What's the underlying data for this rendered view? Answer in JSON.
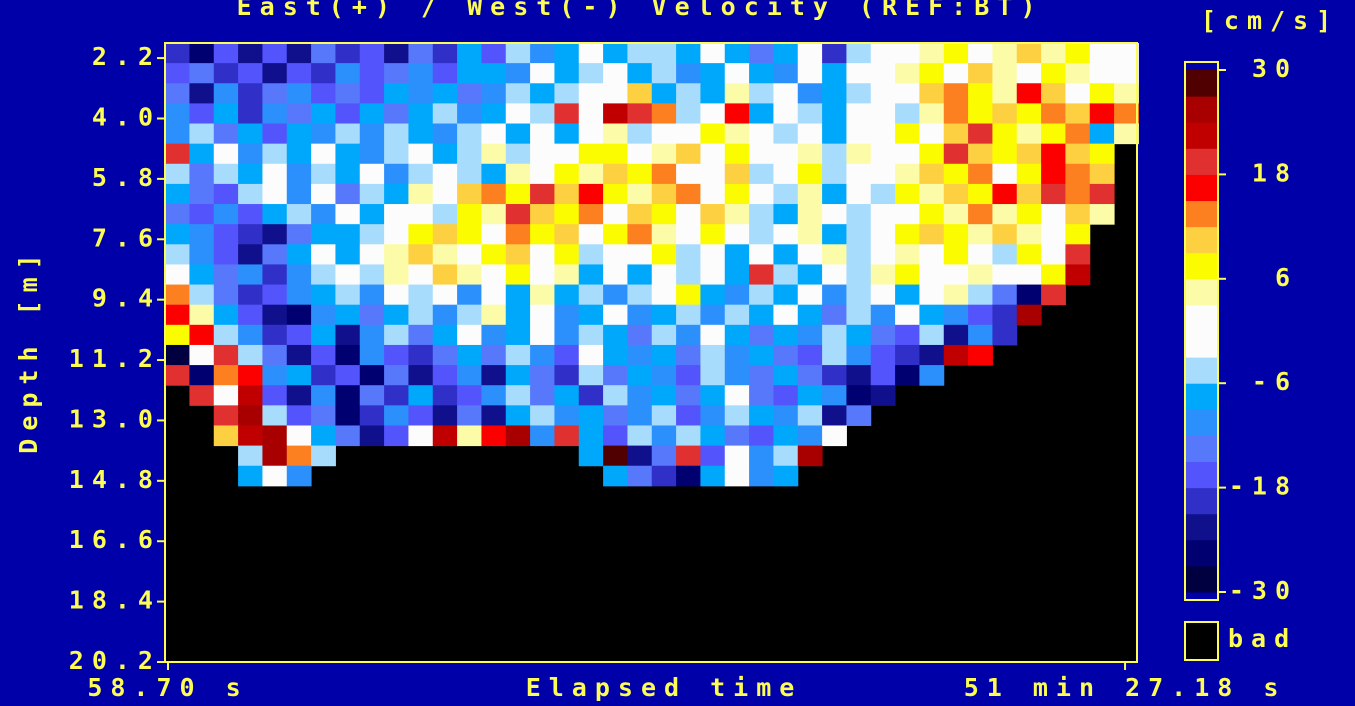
{
  "chart_data": {
    "type": "heatmap",
    "title": "East(+) / West(-) Velocity (REF:BT)",
    "xlabel": "Elapsed time",
    "ylabel": "Depth [m]",
    "colorbar_label": "[cm/s]",
    "bad_label": "bad",
    "bad_color": "#000000",
    "xlim": [
      49.2,
      3125
    ],
    "xticks": [
      {
        "value": 58.7,
        "label": "58.70 s"
      },
      {
        "value": 3087.18,
        "label": "51 min 27.18 s"
      }
    ],
    "ylim": [
      20.2,
      1.75
    ],
    "yticks": [
      2.2,
      {
        "value": 4,
        "label": "4.0"
      },
      5.8,
      7.6,
      9.4,
      11.2,
      {
        "value": 13,
        "label": "13.0"
      },
      14.8,
      16.6,
      18.4,
      20.2
    ],
    "clim": [
      -30,
      30
    ],
    "cticks": [
      30,
      18,
      6,
      -6,
      -18,
      -30
    ],
    "colors": [
      "#000040",
      "#000070",
      "#10108c",
      "#3030c8",
      "#5454fc",
      "#5878fc",
      "#2c90fc",
      "#00a8fc",
      "#a8dcfc",
      "#fcfcfc",
      "#fcfcfc",
      "#fcfca8",
      "#fcfc00",
      "#fcd040",
      "#fc8020",
      "#fc0000",
      "#e03030",
      "#c00000",
      "#a80000",
      "#500000"
    ],
    "x": [
      88,
      165,
      242,
      319,
      396,
      473,
      550,
      627,
      704,
      781,
      858,
      935,
      1012,
      1089,
      1166,
      1243,
      1320,
      1397,
      1474,
      1551,
      1628,
      1705,
      1782,
      1859,
      1936,
      2013,
      2090,
      2167,
      2244,
      2321,
      2398,
      2475,
      2552,
      2629,
      2706,
      2783,
      2860,
      2937,
      3014,
      3091
    ],
    "y": [
      2.05,
      2.65,
      3.25,
      3.85,
      4.45,
      5.05,
      5.65,
      6.25,
      6.85,
      7.45,
      8.05,
      8.65,
      9.25,
      9.85,
      10.45,
      11.05,
      11.65,
      12.25,
      12.85,
      13.45,
      14.05,
      14.65
    ],
    "z": [
      [
        -20,
        -25,
        -16,
        -22,
        -18,
        -24,
        -15,
        -20,
        -17,
        -22,
        -14,
        -19,
        -8,
        -16,
        -5,
        -10,
        -7,
        0,
        -8,
        -4,
        -6,
        -9,
        -2,
        -7,
        -14,
        -8,
        -3,
        -20,
        -6,
        -1,
        1,
        4,
        8,
        2,
        5,
        10,
        3,
        6,
        -2,
        0
      ],
      [
        -18,
        -14,
        -21,
        -17,
        -23,
        -16,
        -19,
        -12,
        -18,
        -15,
        -10,
        -17,
        -7,
        -9,
        -12,
        -1,
        -8,
        -5,
        2,
        -7,
        -4,
        -10,
        -8,
        -1,
        -7,
        -11,
        -3,
        -8,
        -2,
        0,
        3,
        6,
        1,
        9,
        5,
        2,
        8,
        4,
        1,
        -2
      ],
      [
        -15,
        -22,
        -12,
        -19,
        -14,
        -11,
        -18,
        -13,
        -16,
        -9,
        -12,
        -7,
        -15,
        -10,
        -4,
        -8,
        -6,
        2,
        -3,
        11,
        -8,
        -5,
        -9,
        3,
        -6,
        -2,
        -10,
        -7,
        -4,
        2,
        -1,
        9,
        12,
        7,
        3,
        16,
        9,
        2,
        6,
        4
      ],
      [
        -12,
        -17,
        -8,
        -20,
        -11,
        -14,
        -9,
        -16,
        -7,
        -13,
        -9,
        -5,
        -11,
        -8,
        -3,
        -6,
        20,
        -2,
        21,
        18,
        14,
        -6,
        -1,
        17,
        -7,
        -3,
        -5,
        -8,
        0,
        -2,
        -4,
        5,
        14,
        8,
        11,
        6,
        13,
        9,
        15,
        12
      ],
      [
        -10,
        -6,
        -14,
        -9,
        -17,
        -8,
        -12,
        -6,
        -10,
        -4,
        -7,
        -11,
        -5,
        -2,
        -9,
        -3,
        -7,
        1,
        5,
        -4,
        2,
        -1,
        7,
        3,
        -2,
        -6,
        -1,
        -9,
        -3,
        1,
        6,
        2,
        10,
        18,
        8,
        4,
        7,
        12,
        -8,
        5
      ],
      [
        18,
        -8,
        -2,
        -11,
        -6,
        -9,
        -3,
        -7,
        -12,
        -5,
        -2,
        -8,
        -4,
        3,
        -6,
        1,
        -3,
        6,
        8,
        -1,
        4,
        9,
        2,
        7,
        -3,
        0,
        5,
        -4,
        3,
        -1,
        2,
        8,
        20,
        9,
        6,
        11,
        17,
        10,
        7,
        null
      ],
      [
        -6,
        -15,
        -4,
        -9,
        2,
        -12,
        -5,
        -8,
        -3,
        -10,
        -6,
        -1,
        -4,
        -7,
        4,
        -2,
        8,
        3,
        10,
        6,
        12,
        2,
        -1,
        9,
        -4,
        -2,
        7,
        -6,
        1,
        -3,
        4,
        10,
        6,
        14,
        -1,
        8,
        16,
        13,
        9,
        null
      ],
      [
        -9,
        -13,
        -17,
        -6,
        -3,
        -10,
        -1,
        -14,
        -4,
        -7,
        4,
        -3,
        9,
        14,
        7,
        18,
        10,
        16,
        8,
        3,
        9,
        13,
        -2,
        8,
        1,
        -5,
        4,
        -7,
        -2,
        -6,
        7,
        3,
        11,
        6,
        15,
        9,
        18,
        12,
        20,
        null
      ],
      [
        -14,
        -18,
        -12,
        -16,
        -8,
        -5,
        -11,
        -3,
        -7,
        -2,
        1,
        -6,
        7,
        4,
        20,
        11,
        8,
        14,
        2,
        9,
        6,
        -3,
        11,
        5,
        -4,
        -8,
        3,
        -2,
        -6,
        0,
        2,
        8,
        4,
        12,
        3,
        7,
        2,
        10,
        5,
        null
      ],
      [
        -8,
        -11,
        -16,
        -19,
        -22,
        -13,
        -7,
        -9,
        -4,
        2,
        8,
        11,
        6,
        -1,
        13,
        8,
        10,
        -2,
        6,
        12,
        4,
        -3,
        8,
        1,
        -6,
        -2,
        5,
        -9,
        -4,
        2,
        7,
        11,
        6,
        3,
        9,
        5,
        -1,
        8,
        null,
        null
      ],
      [
        -6,
        -12,
        -18,
        -24,
        -14,
        -9,
        -3,
        -8,
        -1,
        5,
        9,
        4,
        -2,
        7,
        11,
        2,
        6,
        -4,
        1,
        -3,
        8,
        -5,
        -1,
        -7,
        -3,
        -8,
        -2,
        4,
        -6,
        -1,
        3,
        -2,
        7,
        2,
        -4,
        6,
        1,
        19,
        null,
        null
      ],
      [
        2,
        -8,
        -15,
        -10,
        -19,
        -11,
        -4,
        -2,
        -6,
        3,
        -1,
        10,
        4,
        -3,
        8,
        -2,
        5,
        -7,
        -1,
        -9,
        -3,
        -6,
        2,
        -8,
        18,
        -4,
        -9,
        -1,
        -5,
        3,
        6,
        1,
        -3,
        5,
        2,
        -2,
        8,
        22,
        null,
        null
      ],
      [
        14,
        -4,
        -13,
        -20,
        -17,
        -12,
        -8,
        -5,
        -11,
        -3,
        -6,
        -2,
        -10,
        1,
        -7,
        3,
        -9,
        -4,
        -11,
        -6,
        -2,
        8,
        -7,
        -12,
        -5,
        -9,
        -3,
        -10,
        -6,
        -2,
        -8,
        -1,
        4,
        -5,
        -14,
        -26,
        20,
        null,
        null,
        null
      ],
      [
        16,
        3,
        -9,
        -17,
        -23,
        -26,
        -12,
        -7,
        -14,
        -9,
        -4,
        -11,
        -6,
        5,
        -8,
        -3,
        -10,
        -7,
        -2,
        -12,
        -8,
        -4,
        -11,
        -6,
        -9,
        -1,
        -7,
        -13,
        -5,
        -10,
        -3,
        -8,
        -12,
        -16,
        -21,
        24,
        null,
        null,
        null,
        null
      ],
      [
        6,
        15,
        -4,
        -12,
        -20,
        -16,
        -8,
        -23,
        -11,
        -6,
        -14,
        -9,
        -3,
        -10,
        -7,
        -2,
        -12,
        -5,
        -9,
        -15,
        -6,
        -11,
        -3,
        -8,
        -13,
        -7,
        -10,
        -4,
        -9,
        -14,
        -18,
        -6,
        -22,
        -12,
        -20,
        null,
        null,
        null,
        null,
        null
      ],
      [
        -28,
        2,
        18,
        -6,
        -14,
        -22,
        -18,
        -25,
        -10,
        -17,
        -20,
        -13,
        -8,
        -15,
        -5,
        -11,
        -16,
        -3,
        -9,
        -12,
        -7,
        -14,
        -4,
        -10,
        -8,
        -13,
        -18,
        -6,
        -11,
        -16,
        -21,
        -24,
        22,
        16,
        null,
        null,
        null,
        null,
        null,
        null
      ],
      [
        20,
        -25,
        14,
        16,
        -12,
        -8,
        -20,
        -16,
        -26,
        -13,
        -23,
        -18,
        -11,
        -22,
        -9,
        -15,
        -19,
        -6,
        -13,
        -7,
        -10,
        -17,
        -5,
        -12,
        -15,
        -8,
        -14,
        -20,
        -22,
        -18,
        -26,
        -10,
        null,
        null,
        null,
        null,
        null,
        null,
        null,
        null
      ],
      [
        null,
        18,
        -2,
        22,
        -16,
        -24,
        -10,
        -27,
        -14,
        -19,
        -8,
        -21,
        -16,
        -12,
        -5,
        -13,
        -9,
        -20,
        -4,
        -11,
        -7,
        -15,
        -9,
        -3,
        -14,
        -18,
        -8,
        -12,
        -26,
        -23,
        null,
        null,
        null,
        null,
        null,
        null,
        null,
        null,
        null,
        null
      ],
      [
        null,
        null,
        20,
        24,
        -5,
        -18,
        -13,
        -26,
        -20,
        -10,
        -17,
        -24,
        -14,
        -22,
        -9,
        -4,
        -12,
        -7,
        -15,
        -10,
        -5,
        -16,
        -12,
        -6,
        -9,
        -11,
        -4,
        -22,
        -15,
        null,
        null,
        null,
        null,
        null,
        null,
        null,
        null,
        null,
        null,
        null
      ],
      [
        null,
        null,
        10,
        22,
        25,
        -3,
        -8,
        -14,
        -24,
        -18,
        2,
        22,
        5,
        16,
        26,
        -12,
        20,
        -9,
        -16,
        -6,
        -11,
        -4,
        -8,
        -14,
        -18,
        -7,
        -10,
        -2,
        null,
        null,
        null,
        null,
        null,
        null,
        null,
        null,
        null,
        null,
        null,
        null
      ],
      [
        null,
        null,
        null,
        -4,
        26,
        14,
        -5,
        null,
        null,
        null,
        null,
        null,
        null,
        null,
        null,
        null,
        null,
        -8,
        27,
        -22,
        -14,
        20,
        -18,
        -3,
        -10,
        -6,
        24,
        null,
        null,
        null,
        null,
        null,
        null,
        null,
        null,
        null,
        null,
        null,
        null,
        null
      ],
      [
        null,
        null,
        null,
        -7,
        -3,
        -12,
        null,
        null,
        null,
        null,
        null,
        null,
        null,
        null,
        null,
        null,
        null,
        null,
        -9,
        -15,
        -20,
        -26,
        -8,
        -3,
        -12,
        -7,
        null,
        null,
        null,
        null,
        null,
        null,
        null,
        null,
        null,
        null,
        null,
        null,
        null,
        null
      ]
    ]
  }
}
